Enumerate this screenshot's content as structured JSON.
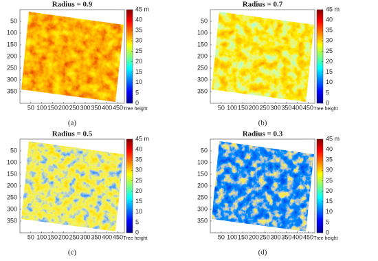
{
  "chart_data": [
    {
      "type": "heatmap",
      "title": "Radius = 0.9",
      "caption": "(a)",
      "xlim": [
        0,
        480
      ],
      "ylim": [
        0,
        400
      ],
      "xticks": [
        50,
        100,
        150,
        200,
        250,
        300,
        350,
        400,
        450
      ],
      "yticks": [
        50,
        100,
        150,
        200,
        250,
        300,
        350
      ],
      "colorbar": {
        "label": "Tree height",
        "lim": [
          0,
          45
        ],
        "ticks": [
          0,
          5,
          10,
          15,
          20,
          25,
          30,
          35,
          40,
          {
            "value": 45,
            "label": "45 m"
          }
        ]
      }
    },
    {
      "type": "heatmap",
      "title": "Radius = 0.7",
      "caption": "(b)",
      "xlim": [
        0,
        480
      ],
      "ylim": [
        0,
        400
      ],
      "xticks": [
        50,
        100,
        150,
        200,
        250,
        300,
        350,
        400,
        450
      ],
      "yticks": [
        50,
        100,
        150,
        200,
        250,
        300,
        350
      ],
      "colorbar": {
        "label": "Tree height",
        "lim": [
          0,
          45
        ],
        "ticks": [
          0,
          5,
          10,
          15,
          20,
          25,
          30,
          35,
          40,
          {
            "value": 45,
            "label": "45 m"
          }
        ]
      }
    },
    {
      "type": "heatmap",
      "title": "Radius = 0.5",
      "caption": "(c)",
      "xlim": [
        0,
        480
      ],
      "ylim": [
        0,
        400
      ],
      "xticks": [
        50,
        100,
        150,
        200,
        250,
        300,
        350,
        400,
        450
      ],
      "yticks": [
        50,
        100,
        150,
        200,
        250,
        300,
        350
      ],
      "colorbar": {
        "label": "Tree height",
        "lim": [
          0,
          45
        ],
        "ticks": [
          0,
          5,
          10,
          15,
          20,
          25,
          30,
          35,
          40,
          {
            "value": 45,
            "label": "45 m"
          }
        ]
      }
    },
    {
      "type": "heatmap",
      "title": "Radius = 0.3",
      "caption": "(d)",
      "xlim": [
        0,
        480
      ],
      "ylim": [
        0,
        400
      ],
      "xticks": [
        50,
        100,
        150,
        200,
        250,
        300,
        350,
        400,
        450
      ],
      "yticks": [
        50,
        100,
        150,
        200,
        250,
        300,
        350
      ],
      "colorbar": {
        "label": "Tree height",
        "lim": [
          0,
          45
        ],
        "ticks": [
          0,
          5,
          10,
          15,
          20,
          25,
          30,
          35,
          40,
          {
            "value": 45,
            "label": "45 m"
          }
        ]
      }
    }
  ]
}
